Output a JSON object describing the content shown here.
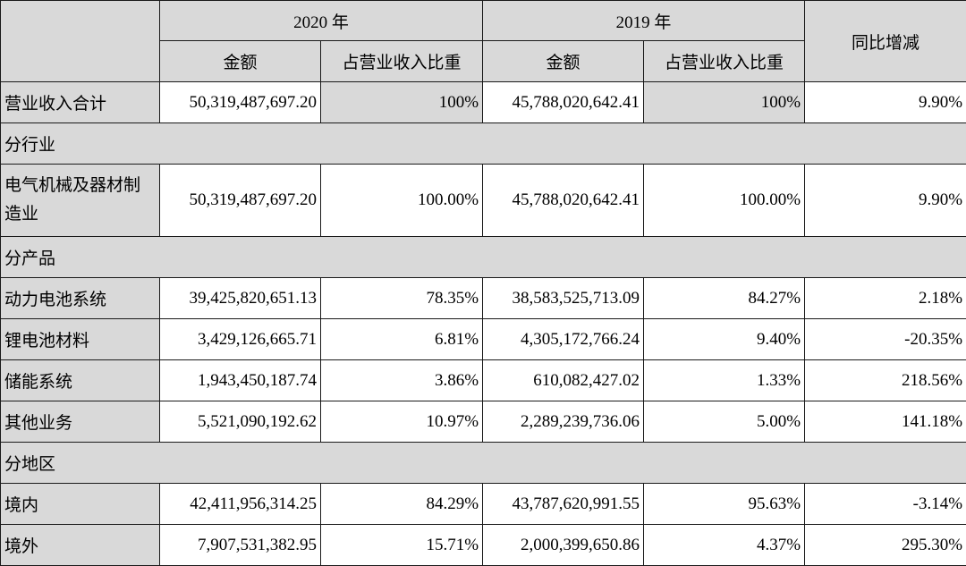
{
  "header": {
    "year_2020": "2020 年",
    "year_2019": "2019 年",
    "yoy": "同比增减",
    "amount": "金额",
    "share": "占营业收入比重"
  },
  "total": {
    "label": "营业收入合计",
    "amt2020": "50,319,487,697.20",
    "pct2020": "100%",
    "amt2019": "45,788,020,642.41",
    "pct2019": "100%",
    "yoy": "9.90%"
  },
  "sections": {
    "industry": "分行业",
    "product": "分产品",
    "region": "分地区"
  },
  "industry_rows": [
    {
      "label": "电气机械及器材制造业",
      "amt2020": "50,319,487,697.20",
      "pct2020": "100.00%",
      "amt2019": "45,788,020,642.41",
      "pct2019": "100.00%",
      "yoy": "9.90%"
    }
  ],
  "product_rows": [
    {
      "label": "动力电池系统",
      "amt2020": "39,425,820,651.13",
      "pct2020": "78.35%",
      "amt2019": "38,583,525,713.09",
      "pct2019": "84.27%",
      "yoy": "2.18%"
    },
    {
      "label": "锂电池材料",
      "amt2020": "3,429,126,665.71",
      "pct2020": "6.81%",
      "amt2019": "4,305,172,766.24",
      "pct2019": "9.40%",
      "yoy": "-20.35%"
    },
    {
      "label": "储能系统",
      "amt2020": "1,943,450,187.74",
      "pct2020": "3.86%",
      "amt2019": "610,082,427.02",
      "pct2019": "1.33%",
      "yoy": "218.56%"
    },
    {
      "label": "其他业务",
      "amt2020": "5,521,090,192.62",
      "pct2020": "10.97%",
      "amt2019": "2,289,239,736.06",
      "pct2019": "5.00%",
      "yoy": "141.18%"
    }
  ],
  "region_rows": [
    {
      "label": "境内",
      "amt2020": "42,411,956,314.25",
      "pct2020": "84.29%",
      "amt2019": "43,787,620,991.55",
      "pct2019": "95.63%",
      "yoy": "-3.14%"
    },
    {
      "label": "境外",
      "amt2020": "7,907,531,382.95",
      "pct2020": "15.71%",
      "amt2019": "2,000,399,650.86",
      "pct2019": "4.37%",
      "yoy": "295.30%"
    }
  ],
  "colors": {
    "shade": "#d9d9d9",
    "border": "#1a1a1a"
  }
}
